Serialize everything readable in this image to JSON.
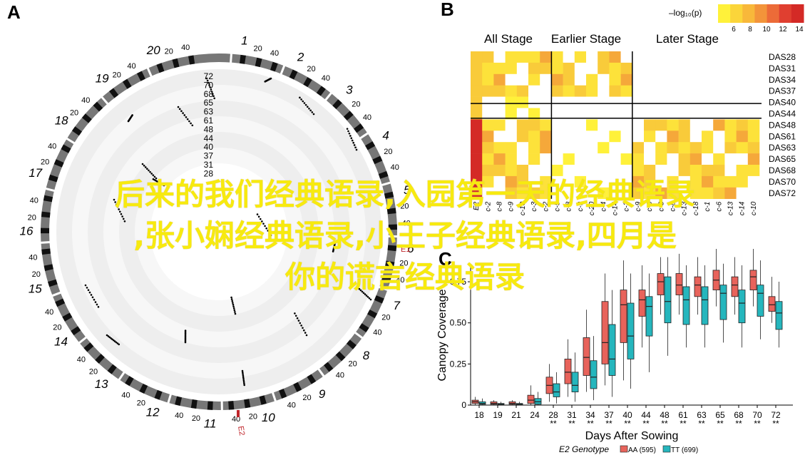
{
  "panel_a": {
    "letter": "A",
    "radial_labels": [
      "72",
      "70",
      "68",
      "65",
      "63",
      "61",
      "48",
      "44",
      "40",
      "37",
      "31",
      "28"
    ],
    "chromosomes": [
      {
        "name": "1",
        "ticks": [
          "20",
          "40"
        ]
      },
      {
        "name": "2",
        "ticks": [
          "20",
          "40"
        ]
      },
      {
        "name": "3",
        "ticks": [
          "20",
          "40"
        ]
      },
      {
        "name": "4",
        "ticks": [
          "20",
          "40"
        ]
      },
      {
        "name": "5",
        "ticks": [
          "20",
          "40"
        ]
      },
      {
        "name": "6",
        "ticks": [
          "20",
          "40"
        ]
      },
      {
        "name": "7",
        "ticks": [
          "20",
          "40"
        ]
      },
      {
        "name": "8",
        "ticks": [
          "20",
          "40"
        ]
      },
      {
        "name": "9",
        "ticks": [
          "20",
          "40"
        ]
      },
      {
        "name": "10",
        "ticks": [
          "20",
          "40"
        ]
      },
      {
        "name": "11",
        "ticks": [
          "20",
          "40"
        ]
      },
      {
        "name": "12",
        "ticks": [
          "20",
          "40"
        ]
      },
      {
        "name": "13",
        "ticks": [
          "20",
          "40"
        ]
      },
      {
        "name": "14",
        "ticks": [
          "20",
          "40"
        ]
      },
      {
        "name": "15",
        "ticks": [
          "20",
          "40"
        ]
      },
      {
        "name": "16",
        "ticks": [
          "20",
          "40"
        ]
      },
      {
        "name": "17",
        "ticks": [
          "20",
          "40"
        ]
      },
      {
        "name": "18",
        "ticks": [
          "20",
          "40"
        ]
      },
      {
        "name": "19",
        "ticks": [
          "20",
          "40"
        ]
      },
      {
        "name": "20",
        "ticks": [
          "20",
          "40"
        ]
      }
    ],
    "markers": [
      "E1",
      "E2"
    ]
  },
  "panel_b": {
    "letter": "B",
    "legend_title": "–log₁₀(p)",
    "legend_ticks": [
      "6",
      "8",
      "10",
      "12",
      "14"
    ],
    "legend_colors": [
      "#fff13a",
      "#fbd53a",
      "#f8b83a",
      "#f3943a",
      "#ec6b38",
      "#e03f30",
      "#d42a26"
    ],
    "stages": [
      "All Stage",
      "Earlier Stage",
      "Later Stage"
    ],
    "rows": [
      "DAS28",
      "DAS31",
      "DAS34",
      "DAS37",
      "DAS40",
      "DAS44",
      "DAS48",
      "DAS61",
      "DAS63",
      "DAS65",
      "DAS68",
      "DAS70",
      "DAS72"
    ],
    "col_labels": [
      "E2",
      "c-2",
      "c-8",
      "c-9",
      "c-10",
      "c-3",
      "c-2",
      "c-5",
      "c-8",
      "c-9",
      "c-20",
      "c-4",
      "c-14",
      "c-3",
      "c-9",
      "c-6",
      "c-3",
      "c-8",
      "c-13",
      "c-18",
      "c-1",
      "c-6",
      "c-13",
      "c-14",
      "c-10"
    ]
  },
  "panel_c": {
    "letter": "C",
    "ylabel": "Canopy Coverage",
    "xlabel": "Days After Sowing",
    "legend_title": "E2 Genotype",
    "legend_items": [
      {
        "label": "AA (595)",
        "color": "#e8635b"
      },
      {
        "label": "TT (699)",
        "color": "#25b6bd"
      }
    ]
  },
  "chart_data": {
    "type": "box",
    "categories": [
      "18",
      "19",
      "21",
      "24",
      "28",
      "31",
      "34",
      "37",
      "40",
      "44",
      "48",
      "61",
      "63",
      "65",
      "68",
      "70",
      "72"
    ],
    "significance": [
      "",
      "",
      "",
      "",
      "**",
      "**",
      "**",
      "**",
      "**",
      "**",
      "**",
      "**",
      "**",
      "**",
      "**",
      "**",
      "**"
    ],
    "ylim": [
      0,
      0.85
    ],
    "yticks": [
      "0",
      "0.25",
      "0.50",
      "0.75"
    ],
    "series": [
      {
        "name": "AA (595)",
        "boxes": [
          [
            0,
            0.01,
            0.02,
            0.03,
            0.05
          ],
          [
            0,
            0.005,
            0.01,
            0.02,
            0.03
          ],
          [
            0,
            0.005,
            0.01,
            0.02,
            0.03
          ],
          [
            0,
            0.01,
            0.03,
            0.06,
            0.12
          ],
          [
            0.02,
            0.07,
            0.12,
            0.17,
            0.25
          ],
          [
            0.05,
            0.13,
            0.2,
            0.28,
            0.4
          ],
          [
            0.08,
            0.18,
            0.29,
            0.41,
            0.58
          ],
          [
            0.12,
            0.25,
            0.38,
            0.63,
            0.8
          ],
          [
            0.15,
            0.38,
            0.61,
            0.7,
            0.88
          ],
          [
            0.35,
            0.54,
            0.64,
            0.7,
            0.85
          ],
          [
            0.55,
            0.67,
            0.75,
            0.8,
            0.9
          ],
          [
            0.55,
            0.67,
            0.73,
            0.8,
            0.92
          ],
          [
            0.55,
            0.66,
            0.73,
            0.78,
            0.9
          ],
          [
            0.6,
            0.7,
            0.76,
            0.82,
            0.95
          ],
          [
            0.55,
            0.66,
            0.73,
            0.78,
            0.9
          ],
          [
            0.6,
            0.7,
            0.78,
            0.82,
            0.95
          ],
          [
            0.5,
            0.57,
            0.61,
            0.66,
            0.78
          ]
        ]
      },
      {
        "name": "TT (699)",
        "boxes": [
          [
            0,
            0.005,
            0.01,
            0.02,
            0.04
          ],
          [
            0,
            0.005,
            0.005,
            0.01,
            0.02
          ],
          [
            0,
            0.003,
            0.005,
            0.01,
            0.02
          ],
          [
            0,
            0.005,
            0.02,
            0.04,
            0.08
          ],
          [
            0.01,
            0.05,
            0.08,
            0.13,
            0.2
          ],
          [
            0.02,
            0.08,
            0.12,
            0.2,
            0.32
          ],
          [
            0.03,
            0.1,
            0.17,
            0.27,
            0.42
          ],
          [
            0.05,
            0.18,
            0.28,
            0.49,
            0.7
          ],
          [
            0.1,
            0.28,
            0.42,
            0.62,
            0.8
          ],
          [
            0.2,
            0.42,
            0.6,
            0.66,
            0.8
          ],
          [
            0.3,
            0.5,
            0.63,
            0.78,
            0.9
          ],
          [
            0.35,
            0.49,
            0.64,
            0.72,
            0.85
          ],
          [
            0.35,
            0.49,
            0.64,
            0.72,
            0.85
          ],
          [
            0.38,
            0.52,
            0.68,
            0.73,
            0.86
          ],
          [
            0.35,
            0.5,
            0.62,
            0.7,
            0.85
          ],
          [
            0.4,
            0.54,
            0.68,
            0.73,
            0.88
          ],
          [
            0.35,
            0.46,
            0.56,
            0.63,
            0.75
          ]
        ]
      }
    ]
  },
  "overlay": {
    "line1": "后来的我们经典语录,入园第一天的经典语录",
    "line2": ",张小娴经典语录,小王子经典语录,四月是",
    "line3": "你的谎言经典语录"
  }
}
